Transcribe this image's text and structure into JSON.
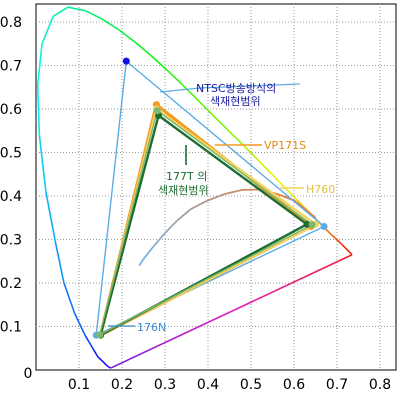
{
  "chart_data": {
    "type": "scatter",
    "title": "",
    "xlabel": "",
    "ylabel": "",
    "xlim": [
      0,
      0.85
    ],
    "ylim": [
      0,
      0.85
    ],
    "grid": true,
    "x_ticks": [
      "0.1",
      "0.2",
      "0.3",
      "0.4",
      "0.5",
      "0.6",
      "0.7",
      "0.8"
    ],
    "y_ticks": [
      "0.1",
      "0.2",
      "0.3",
      "0.4",
      "0.5",
      "0.6",
      "0.7",
      "0.8"
    ],
    "origin_label": "0",
    "spectral_locus": [
      [
        0.175,
        0.005
      ],
      [
        0.172,
        0.005
      ],
      [
        0.165,
        0.01
      ],
      [
        0.155,
        0.02
      ],
      [
        0.144,
        0.03
      ],
      [
        0.132,
        0.05
      ],
      [
        0.114,
        0.08
      ],
      [
        0.09,
        0.13
      ],
      [
        0.065,
        0.2
      ],
      [
        0.045,
        0.295
      ],
      [
        0.023,
        0.41
      ],
      [
        0.008,
        0.538
      ],
      [
        0.004,
        0.655
      ],
      [
        0.014,
        0.75
      ],
      [
        0.04,
        0.813
      ],
      [
        0.074,
        0.834
      ],
      [
        0.115,
        0.826
      ],
      [
        0.155,
        0.806
      ],
      [
        0.193,
        0.782
      ],
      [
        0.23,
        0.754
      ],
      [
        0.266,
        0.724
      ],
      [
        0.302,
        0.692
      ],
      [
        0.337,
        0.659
      ],
      [
        0.373,
        0.624
      ],
      [
        0.408,
        0.589
      ],
      [
        0.444,
        0.554
      ],
      [
        0.479,
        0.52
      ],
      [
        0.513,
        0.486
      ],
      [
        0.547,
        0.452
      ],
      [
        0.578,
        0.42
      ],
      [
        0.607,
        0.391
      ],
      [
        0.632,
        0.366
      ],
      [
        0.654,
        0.344
      ],
      [
        0.672,
        0.326
      ],
      [
        0.686,
        0.312
      ],
      [
        0.697,
        0.302
      ],
      [
        0.712,
        0.288
      ],
      [
        0.735,
        0.265
      ]
    ],
    "planckian_locus": [
      [
        0.65,
        0.35
      ],
      [
        0.6,
        0.39
      ],
      [
        0.56,
        0.405
      ],
      [
        0.52,
        0.415
      ],
      [
        0.48,
        0.414
      ],
      [
        0.44,
        0.405
      ],
      [
        0.4,
        0.39
      ],
      [
        0.36,
        0.37
      ],
      [
        0.33,
        0.345
      ],
      [
        0.3,
        0.315
      ],
      [
        0.27,
        0.28
      ],
      [
        0.25,
        0.255
      ],
      [
        0.24,
        0.24
      ]
    ],
    "series": [
      {
        "name": "NTSC방송방식의",
        "name2": "색재현범위",
        "color": "#5aaee6",
        "label_color": "#1a1aa0",
        "points": [
          [
            0.21,
            0.71
          ],
          [
            0.67,
            0.33
          ],
          [
            0.14,
            0.08
          ]
        ]
      },
      {
        "name": "VP171S",
        "color": "#f59a20",
        "label_color": "#e08a10",
        "points": [
          [
            0.28,
            0.61
          ],
          [
            0.64,
            0.33
          ],
          [
            0.15,
            0.08
          ]
        ]
      },
      {
        "name": "H760",
        "color": "#f2d460",
        "label_color": "#e8c040",
        "points": [
          [
            0.28,
            0.6
          ],
          [
            0.65,
            0.335
          ],
          [
            0.15,
            0.08
          ]
        ]
      },
      {
        "name": "177T 의",
        "name2": "색재현범위",
        "color": "#1e6e32",
        "label_color": "#1e6e32",
        "points": [
          [
            0.285,
            0.585
          ],
          [
            0.63,
            0.335
          ],
          [
            0.15,
            0.08
          ]
        ]
      },
      {
        "name": "176N",
        "color": "#7cb86c",
        "label_color": "#3a8ad0",
        "points": [
          [
            0.282,
            0.596
          ],
          [
            0.642,
            0.334
          ],
          [
            0.148,
            0.081
          ]
        ]
      }
    ]
  }
}
